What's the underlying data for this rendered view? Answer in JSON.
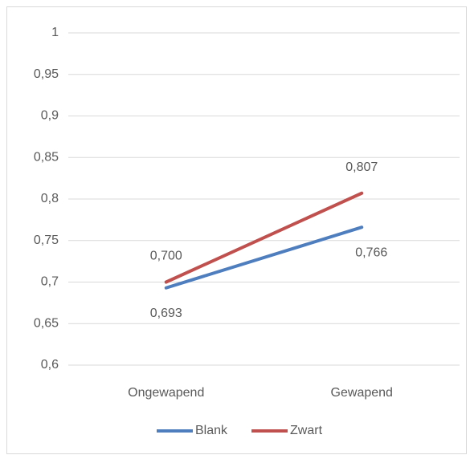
{
  "chart_data": {
    "type": "line",
    "categories": [
      "Ongewapend",
      "Gewapend"
    ],
    "series": [
      {
        "name": "Blank",
        "color": "#4f7ebf",
        "values": [
          0.693,
          0.766
        ],
        "value_labels": [
          "0,693",
          "0,766"
        ]
      },
      {
        "name": "Zwart",
        "color": "#c0504d",
        "values": [
          0.7,
          0.807
        ],
        "value_labels": [
          "0,700",
          "0,807"
        ]
      }
    ],
    "ylim": [
      0.6,
      1
    ],
    "yticks": [
      {
        "value": 0.6,
        "label": "0,6"
      },
      {
        "value": 0.65,
        "label": "0,65"
      },
      {
        "value": 0.7,
        "label": "0,7"
      },
      {
        "value": 0.75,
        "label": "0,75"
      },
      {
        "value": 0.8,
        "label": "0,8"
      },
      {
        "value": 0.85,
        "label": "0,85"
      },
      {
        "value": 0.9,
        "label": "0,9"
      },
      {
        "value": 0.95,
        "label": "0,95"
      },
      1
    ],
    "grid": true,
    "legend": "bottom"
  }
}
